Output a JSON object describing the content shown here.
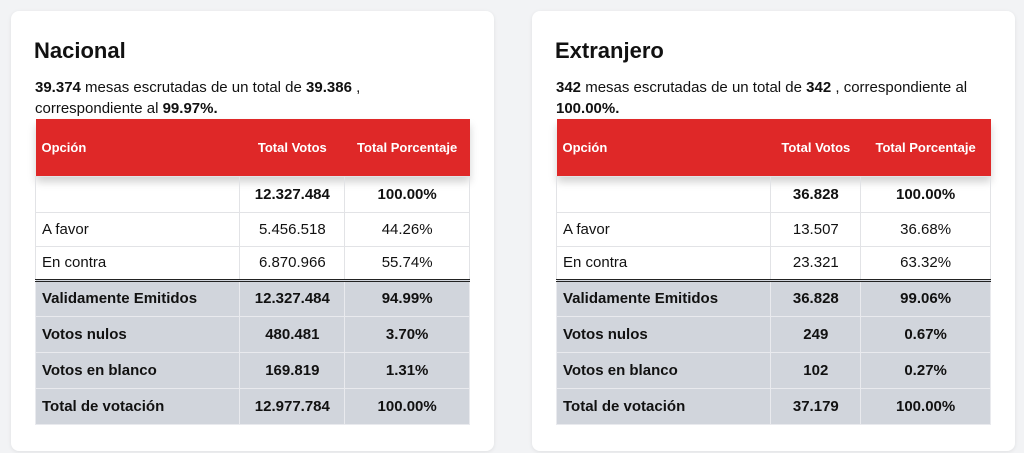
{
  "cards": [
    {
      "title": "Nacional",
      "summary": {
        "scrutinized": "39.374",
        "text1": " mesas escrutadas de un total de ",
        "total": "39.386",
        "text2": " , correspondiente al ",
        "percent": "99.97%."
      },
      "headers": {
        "option": "Opción",
        "votes": "Total Votos",
        "percent": "Total Porcentaje"
      },
      "rows": [
        {
          "option": "",
          "votes": "12.327.484",
          "percent": "100.00%"
        },
        {
          "option": "A favor",
          "votes": "5.456.518",
          "percent": "44.26%"
        },
        {
          "option": "En contra",
          "votes": "6.870.966",
          "percent": "55.74%"
        },
        {
          "option": "Validamente Emitidos",
          "votes": "12.327.484",
          "percent": "94.99%"
        },
        {
          "option": "Votos nulos",
          "votes": "480.481",
          "percent": "3.70%"
        },
        {
          "option": "Votos en blanco",
          "votes": "169.819",
          "percent": "1.31%"
        },
        {
          "option": "Total de votación",
          "votes": "12.977.784",
          "percent": "100.00%"
        }
      ]
    },
    {
      "title": "Extranjero",
      "summary": {
        "scrutinized": "342",
        "text1": " mesas escrutadas de un total de ",
        "total": "342",
        "text2": " , correspondiente al ",
        "percent": "100.00%."
      },
      "headers": {
        "option": "Opción",
        "votes": "Total Votos",
        "percent": "Total Porcentaje"
      },
      "rows": [
        {
          "option": "",
          "votes": "36.828",
          "percent": "100.00%"
        },
        {
          "option": "A favor",
          "votes": "13.507",
          "percent": "36.68%"
        },
        {
          "option": "En contra",
          "votes": "23.321",
          "percent": "63.32%"
        },
        {
          "option": "Validamente Emitidos",
          "votes": "36.828",
          "percent": "99.06%"
        },
        {
          "option": "Votos nulos",
          "votes": "249",
          "percent": "0.67%"
        },
        {
          "option": "Votos en blanco",
          "votes": "102",
          "percent": "0.27%"
        },
        {
          "option": "Total de votación",
          "votes": "37.179",
          "percent": "100.00%"
        }
      ]
    }
  ],
  "colors": {
    "header_red": "#df2828",
    "summary_gray": "#d1d5dc"
  }
}
